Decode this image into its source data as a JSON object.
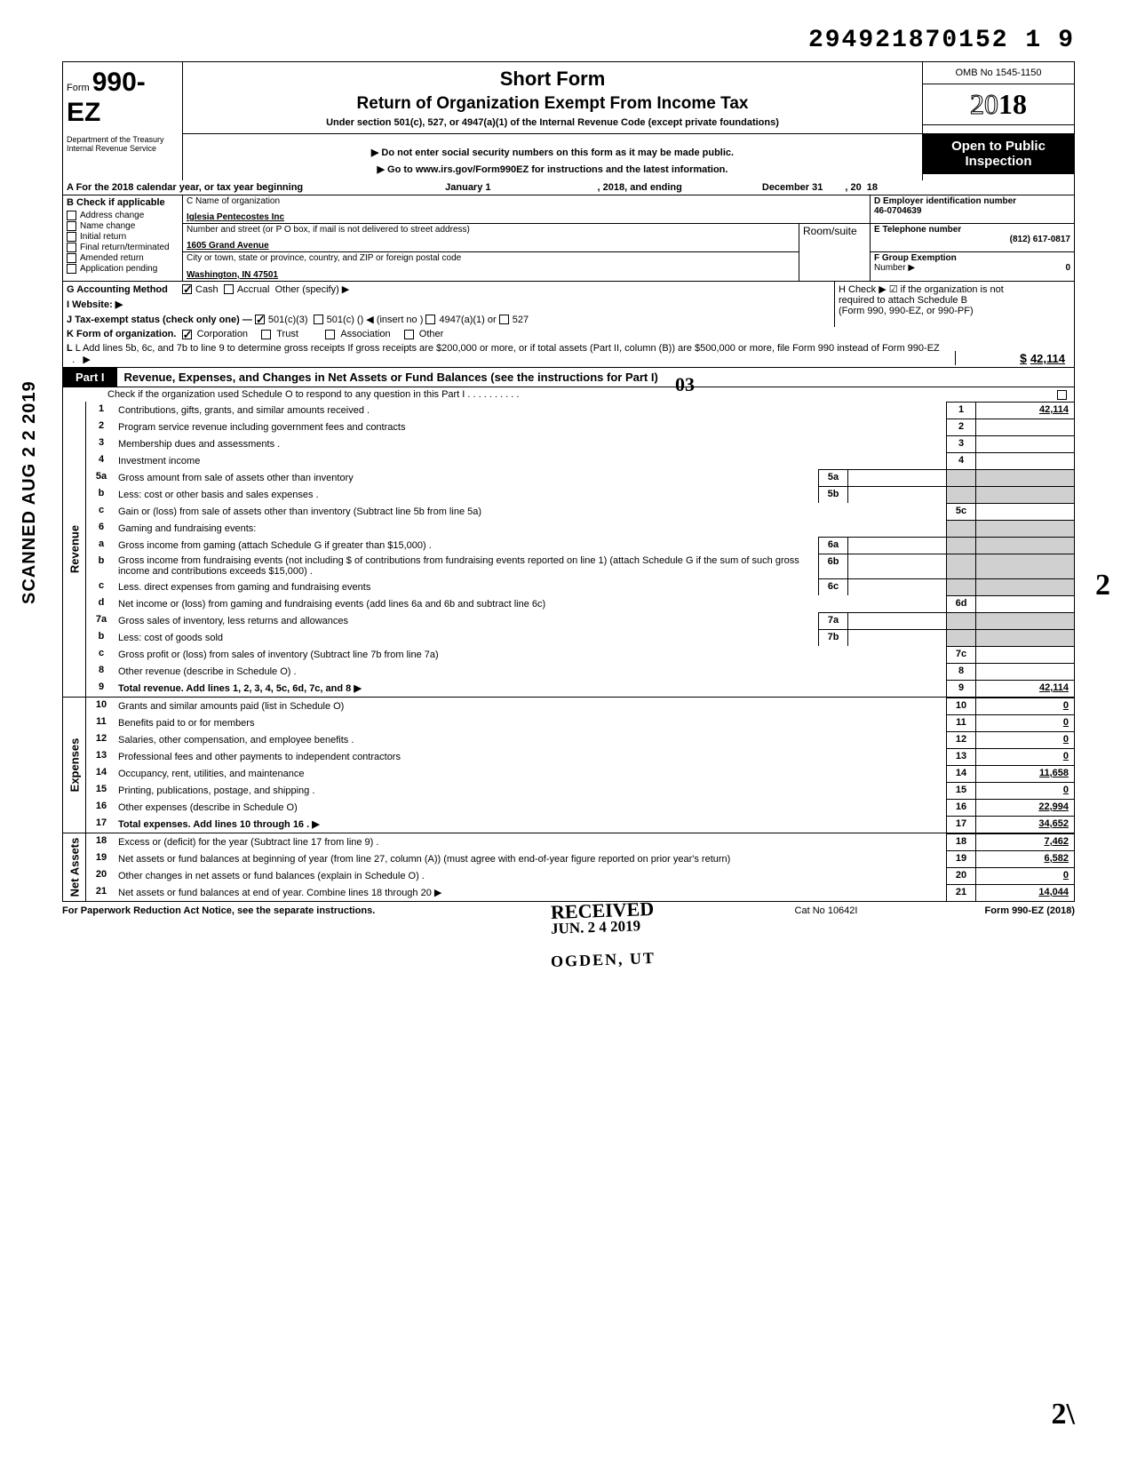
{
  "top_id": "294921870152 1",
  "top_id_last": "9",
  "header": {
    "form_prefix": "Form",
    "form_number": "990-EZ",
    "dept": "Department of the Treasury\nInternal Revenue Service",
    "short_form": "Short Form",
    "title": "Return of Organization Exempt From Income Tax",
    "subtitle": "Under section 501(c), 527, or 4947(a)(1) of the Internal Revenue Code (except private foundations)",
    "note": "▶ Do not enter social security numbers on this form as it may be made public.",
    "link": "▶ Go to www.irs.gov/Form990EZ for instructions and the latest information.",
    "omb": "OMB No 1545-1150",
    "year_outline": "20",
    "year_bold": "18",
    "open_public": "Open to Public Inspection"
  },
  "row_a": {
    "label": "A For the 2018 calendar year, or tax year beginning",
    "begin": "January 1",
    "mid": ", 2018, and ending",
    "end": "December 31",
    "yr_prefix": ", 20",
    "yr": "18"
  },
  "section_b": {
    "header": "B Check if applicable",
    "items": [
      "Address change",
      "Name change",
      "Initial return",
      "Final return/terminated",
      "Amended return",
      "Application pending"
    ]
  },
  "section_c": {
    "name_label": "C Name of organization",
    "name": "Iglesia Pentecostes Inc",
    "addr_label": "Number and street (or P O box, if mail is not delivered to street address)",
    "addr": "1605 Grand Avenue",
    "city_label": "City or town, state or province, country, and ZIP or foreign postal code",
    "city": "Washington, IN 47501",
    "room_label": "Room/suite"
  },
  "section_d": {
    "label": "D Employer identification number",
    "val": "46-0704639"
  },
  "section_e": {
    "label": "E Telephone number",
    "val": "(812) 617-0817"
  },
  "section_f": {
    "label": "F Group Exemption",
    "label2": "Number ▶",
    "val": "0"
  },
  "section_g": {
    "label": "G Accounting Method",
    "cash": "Cash",
    "accrual": "Accrual",
    "other": "Other (specify) ▶"
  },
  "section_h": {
    "line1": "H Check ▶ ☑ if the organization is not",
    "line2": "required to attach Schedule B",
    "line3": "(Form 990, 990-EZ, or 990-PF)"
  },
  "section_i": {
    "label": "I Website: ▶"
  },
  "section_j": {
    "label": "J Tax-exempt status (check only one) —",
    "opt1": "501(c)(3)",
    "opt2": "501(c) (",
    "insert": ") ◀ (insert no )",
    "opt3": "4947(a)(1) or",
    "opt4": "527"
  },
  "section_k": {
    "label": "K Form of organization.",
    "corp": "Corporation",
    "trust": "Trust",
    "assoc": "Association",
    "other": "Other"
  },
  "section_l": {
    "text": "L Add lines 5b, 6c, and 7b to line 9 to determine gross receipts If gross receipts are $200,000 or more, or if total assets (Part II, column (B)) are $500,000 or more, file Form 990 instead of Form 990-EZ",
    "arrow": "▶",
    "dollar": "$",
    "amount": "42,114"
  },
  "part1": {
    "tab": "Part I",
    "title": "Revenue, Expenses, and Changes in Net Assets or Fund Balances (see the instructions for Part I)",
    "subline": "Check if the organization used Schedule O to respond to any question in this Part I . . . . . . . . . ."
  },
  "scanned_text": "SCANNED AUG 2 2 2019",
  "side_labels": {
    "revenue": "Revenue",
    "expenses": "Expenses",
    "net": "Net Assets"
  },
  "rows": [
    {
      "n": "1",
      "desc": "Contributions, gifts, grants, and similar amounts received .",
      "rnum": "1",
      "ramt": "42,114"
    },
    {
      "n": "2",
      "desc": "Program service revenue including government fees and contracts",
      "rnum": "2",
      "ramt": ""
    },
    {
      "n": "3",
      "desc": "Membership dues and assessments .",
      "rnum": "3",
      "ramt": ""
    },
    {
      "n": "4",
      "desc": "Investment income",
      "rnum": "4",
      "ramt": ""
    },
    {
      "n": "5a",
      "desc": "Gross amount from sale of assets other than inventory",
      "mid": "5a"
    },
    {
      "n": "b",
      "desc": "Less: cost or other basis and sales expenses .",
      "mid": "5b"
    },
    {
      "n": "c",
      "desc": "Gain or (loss) from sale of assets other than inventory (Subtract line 5b from line 5a)",
      "rnum": "5c",
      "ramt": ""
    },
    {
      "n": "6",
      "desc": "Gaming and fundraising events:"
    },
    {
      "n": "a",
      "desc": "Gross income from gaming (attach Schedule G if greater than $15,000) .",
      "mid": "6a"
    },
    {
      "n": "b",
      "desc": "Gross income from fundraising events (not including  $                             of contributions from fundraising events reported on line 1) (attach Schedule G if the sum of such gross income and contributions exceeds $15,000) .",
      "mid": "6b"
    },
    {
      "n": "c",
      "desc": "Less. direct expenses from gaming and fundraising events",
      "mid": "6c"
    },
    {
      "n": "d",
      "desc": "Net income or (loss) from gaming and fundraising events (add lines 6a and 6b and subtract line 6c)",
      "rnum": "6d",
      "ramt": ""
    },
    {
      "n": "7a",
      "desc": "Gross sales of inventory, less returns and allowances",
      "mid": "7a"
    },
    {
      "n": "b",
      "desc": "Less: cost of goods sold",
      "mid": "7b"
    },
    {
      "n": "c",
      "desc": "Gross profit or (loss) from sales of inventory (Subtract line 7b from line 7a)",
      "rnum": "7c",
      "ramt": ""
    },
    {
      "n": "8",
      "desc": "Other revenue (describe in Schedule O) .",
      "rnum": "8",
      "ramt": ""
    },
    {
      "n": "9",
      "desc": "Total revenue. Add lines 1, 2, 3, 4, 5c, 6d, 7c, and 8",
      "rnum": "9",
      "ramt": "42,114",
      "bold": true,
      "arrow": true
    },
    {
      "n": "10",
      "desc": "Grants and similar amounts paid (list in Schedule O)",
      "rnum": "10",
      "ramt": "0"
    },
    {
      "n": "11",
      "desc": "Benefits paid to or for members",
      "rnum": "11",
      "ramt": "0"
    },
    {
      "n": "12",
      "desc": "Salaries, other compensation, and employee benefits .",
      "rnum": "12",
      "ramt": "0"
    },
    {
      "n": "13",
      "desc": "Professional fees and other payments to independent contractors",
      "rnum": "13",
      "ramt": "0"
    },
    {
      "n": "14",
      "desc": "Occupancy, rent, utilities, and maintenance",
      "rnum": "14",
      "ramt": "11,658"
    },
    {
      "n": "15",
      "desc": "Printing, publications, postage, and shipping .",
      "rnum": "15",
      "ramt": "0"
    },
    {
      "n": "16",
      "desc": "Other expenses (describe in Schedule O)",
      "rnum": "16",
      "ramt": "22,994"
    },
    {
      "n": "17",
      "desc": "Total expenses. Add lines 10 through 16 .",
      "rnum": "17",
      "ramt": "34,652",
      "bold": true,
      "arrow": true
    },
    {
      "n": "18",
      "desc": "Excess or (deficit) for the year (Subtract line 17 from line 9)  .",
      "rnum": "18",
      "ramt": "7,462"
    },
    {
      "n": "19",
      "desc": "Net assets or fund balances at beginning of year (from line 27, column (A)) (must agree with end-of-year figure reported on prior year's return)",
      "rnum": "19",
      "ramt": "6,582"
    },
    {
      "n": "20",
      "desc": "Other changes in net assets or fund balances (explain in Schedule O) .",
      "rnum": "20",
      "ramt": "0"
    },
    {
      "n": "21",
      "desc": "Net assets or fund balances at end of year. Combine lines 18 through 20",
      "rnum": "21",
      "ramt": "14,044",
      "arrow": true
    }
  ],
  "stamps": {
    "received": "RECEIVED",
    "date": "JUN. 2 4 2019",
    "ogden": "OGDEN, UT"
  },
  "footer": {
    "left": "For Paperwork Reduction Act Notice, see the separate instructions.",
    "mid": "Cat No 10642I",
    "right": "Form 990-EZ (2018)"
  },
  "handwrite": {
    "two": "2",
    "sig": "2\\",
    "o3": "03"
  },
  "colors": {
    "black": "#000000",
    "white": "#ffffff",
    "shade": "#d0d0d0"
  }
}
